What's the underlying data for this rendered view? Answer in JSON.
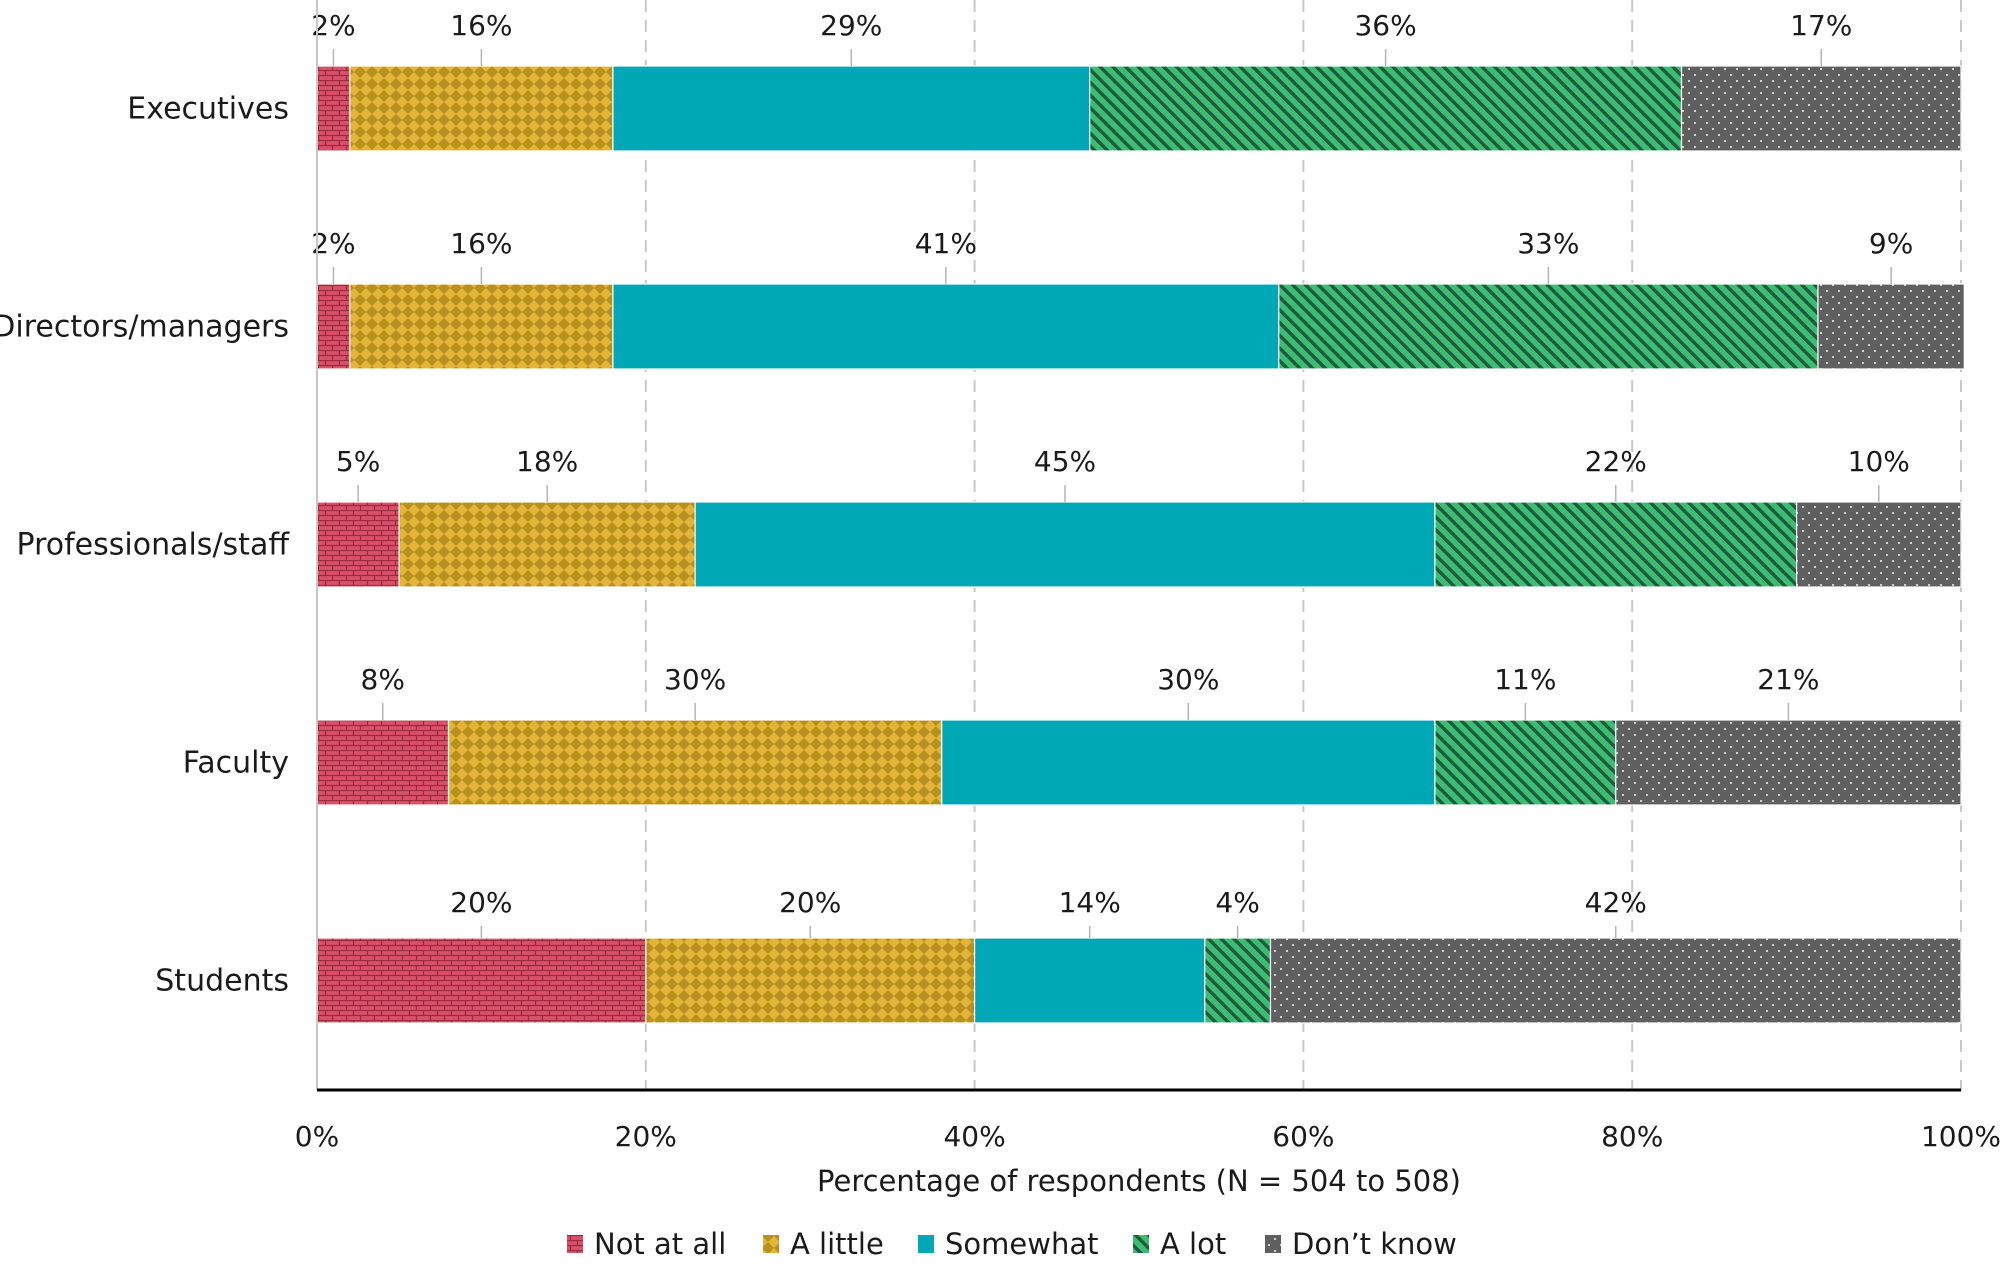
{
  "chart_data": {
    "type": "bar",
    "orientation": "horizontal",
    "stacked": true,
    "title": "",
    "xlabel": "Percentage of respondents (N = 504 to 508)",
    "ylabel": "",
    "xlim": [
      0,
      100
    ],
    "x_ticks": [
      "0%",
      "20%",
      "40%",
      "60%",
      "80%",
      "100%"
    ],
    "grid": true,
    "legend_position": "bottom",
    "categories": [
      "Executives",
      "Directors/managers",
      "Professionals/staff",
      "Faculty",
      "Students"
    ],
    "series": [
      {
        "name": "Not at all",
        "color": "#d9506a",
        "pattern": "brick",
        "values": [
          2,
          2,
          5,
          8,
          20
        ]
      },
      {
        "name": "A little",
        "color": "#c9a227",
        "pattern": "checker",
        "values": [
          16,
          16,
          18,
          30,
          20
        ]
      },
      {
        "name": "Somewhat",
        "color": "#00a7b5",
        "pattern": "solid",
        "values": [
          29,
          41,
          45,
          30,
          14
        ]
      },
      {
        "name": "A lot",
        "color": "#3dbd74",
        "pattern": "diagonal",
        "values": [
          36,
          33,
          22,
          11,
          4
        ]
      },
      {
        "name": "Don’t know",
        "color": "#5f5f5f",
        "pattern": "dots",
        "values": [
          17,
          9,
          10,
          21,
          42
        ]
      }
    ],
    "segment_widths": [
      [
        2,
        16,
        29,
        36,
        17
      ],
      [
        2,
        16,
        40.5,
        32.8,
        8.9
      ],
      [
        5,
        18,
        45,
        22,
        10
      ],
      [
        8,
        30,
        30,
        11,
        21
      ],
      [
        20,
        20,
        14,
        4,
        42
      ]
    ]
  }
}
